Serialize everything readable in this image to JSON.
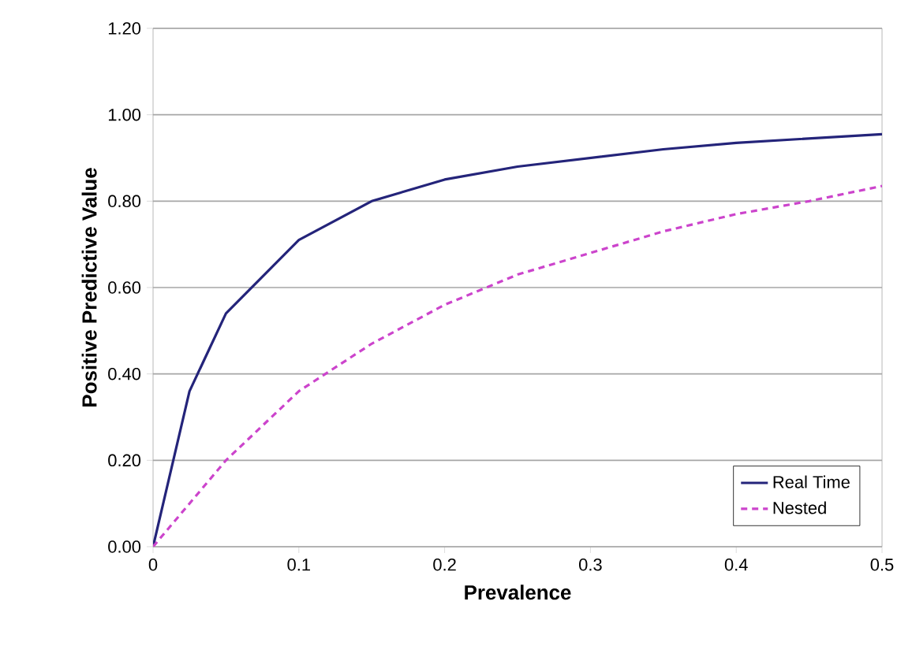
{
  "chart_data": {
    "type": "line",
    "xlabel": "Prevalence",
    "ylabel": "Positive Predictive Value",
    "x": [
      0,
      0.025,
      0.05,
      0.1,
      0.15,
      0.2,
      0.25,
      0.3,
      0.35,
      0.4,
      0.45,
      0.5
    ],
    "series": [
      {
        "name": "Real Time",
        "color": "#24247a",
        "line_style": "solid",
        "values": [
          0,
          0.36,
          0.54,
          0.71,
          0.8,
          0.85,
          0.88,
          0.9,
          0.92,
          0.935,
          0.945,
          0.955
        ]
      },
      {
        "name": "Nested",
        "color": "#cc44cc",
        "line_style": "dashed",
        "values": [
          0,
          0.1,
          0.2,
          0.36,
          0.47,
          0.56,
          0.63,
          0.68,
          0.73,
          0.77,
          0.8,
          0.835
        ]
      }
    ],
    "xlim": [
      0,
      0.5
    ],
    "ylim": [
      0,
      1.2
    ],
    "xticks": [
      0,
      0.1,
      0.2,
      0.3,
      0.4,
      0.5
    ],
    "yticks": [
      {
        "value": 0,
        "label": "0.00"
      },
      {
        "value": 0.2,
        "label": "0.20"
      },
      {
        "value": 0.4,
        "label": "0.40"
      },
      {
        "value": 0.6,
        "label": "0.60"
      },
      {
        "value": 0.8,
        "label": "0.80"
      },
      {
        "value": 1,
        "label": "1.00"
      },
      {
        "value": 1.2,
        "label": "1.20"
      }
    ],
    "grid": "y",
    "legend": "bottom right",
    "marker": "none"
  }
}
